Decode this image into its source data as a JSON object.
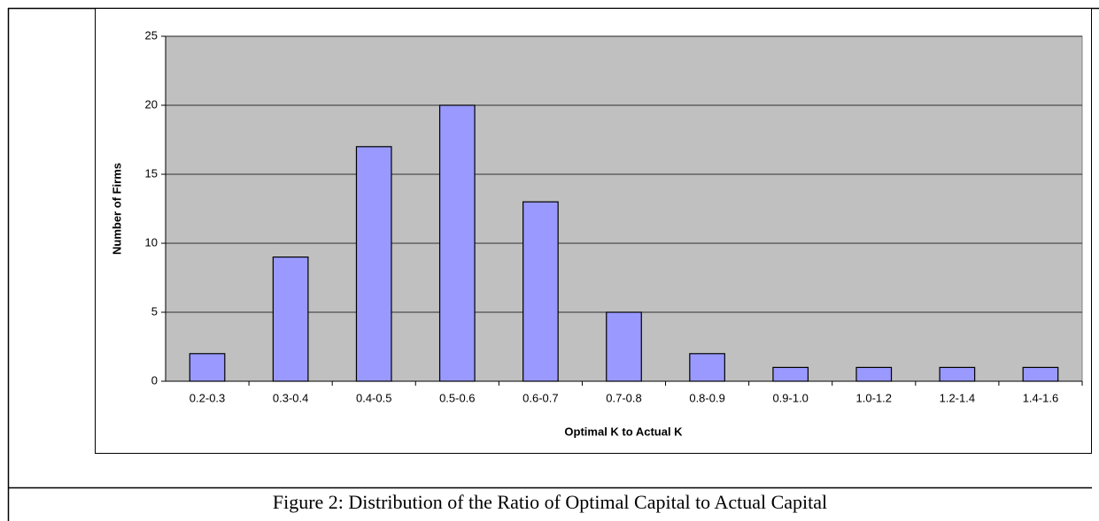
{
  "chart_data": {
    "type": "bar",
    "x_label": "Optimal K to Actual K",
    "y_label": "Number of Firms",
    "categories": [
      "0.2-0.3",
      "0.3-0.4",
      "0.4-0.5",
      "0.5-0.6",
      "0.6-0.7",
      "0.7-0.8",
      "0.8-0.9",
      "0.9-1.0",
      "1.0-1.2",
      "1.2-1.4",
      "1.4-1.6"
    ],
    "values": [
      2,
      9,
      17,
      20,
      13,
      5,
      2,
      1,
      1,
      1,
      1
    ],
    "color": "#9999ff",
    "ylim": [
      0,
      25
    ],
    "yticks": [
      0,
      5,
      10,
      15,
      20,
      25
    ],
    "grid": true
  },
  "caption": "Figure 2: Distribution of the Ratio of Optimal Capital to Actual Capital"
}
